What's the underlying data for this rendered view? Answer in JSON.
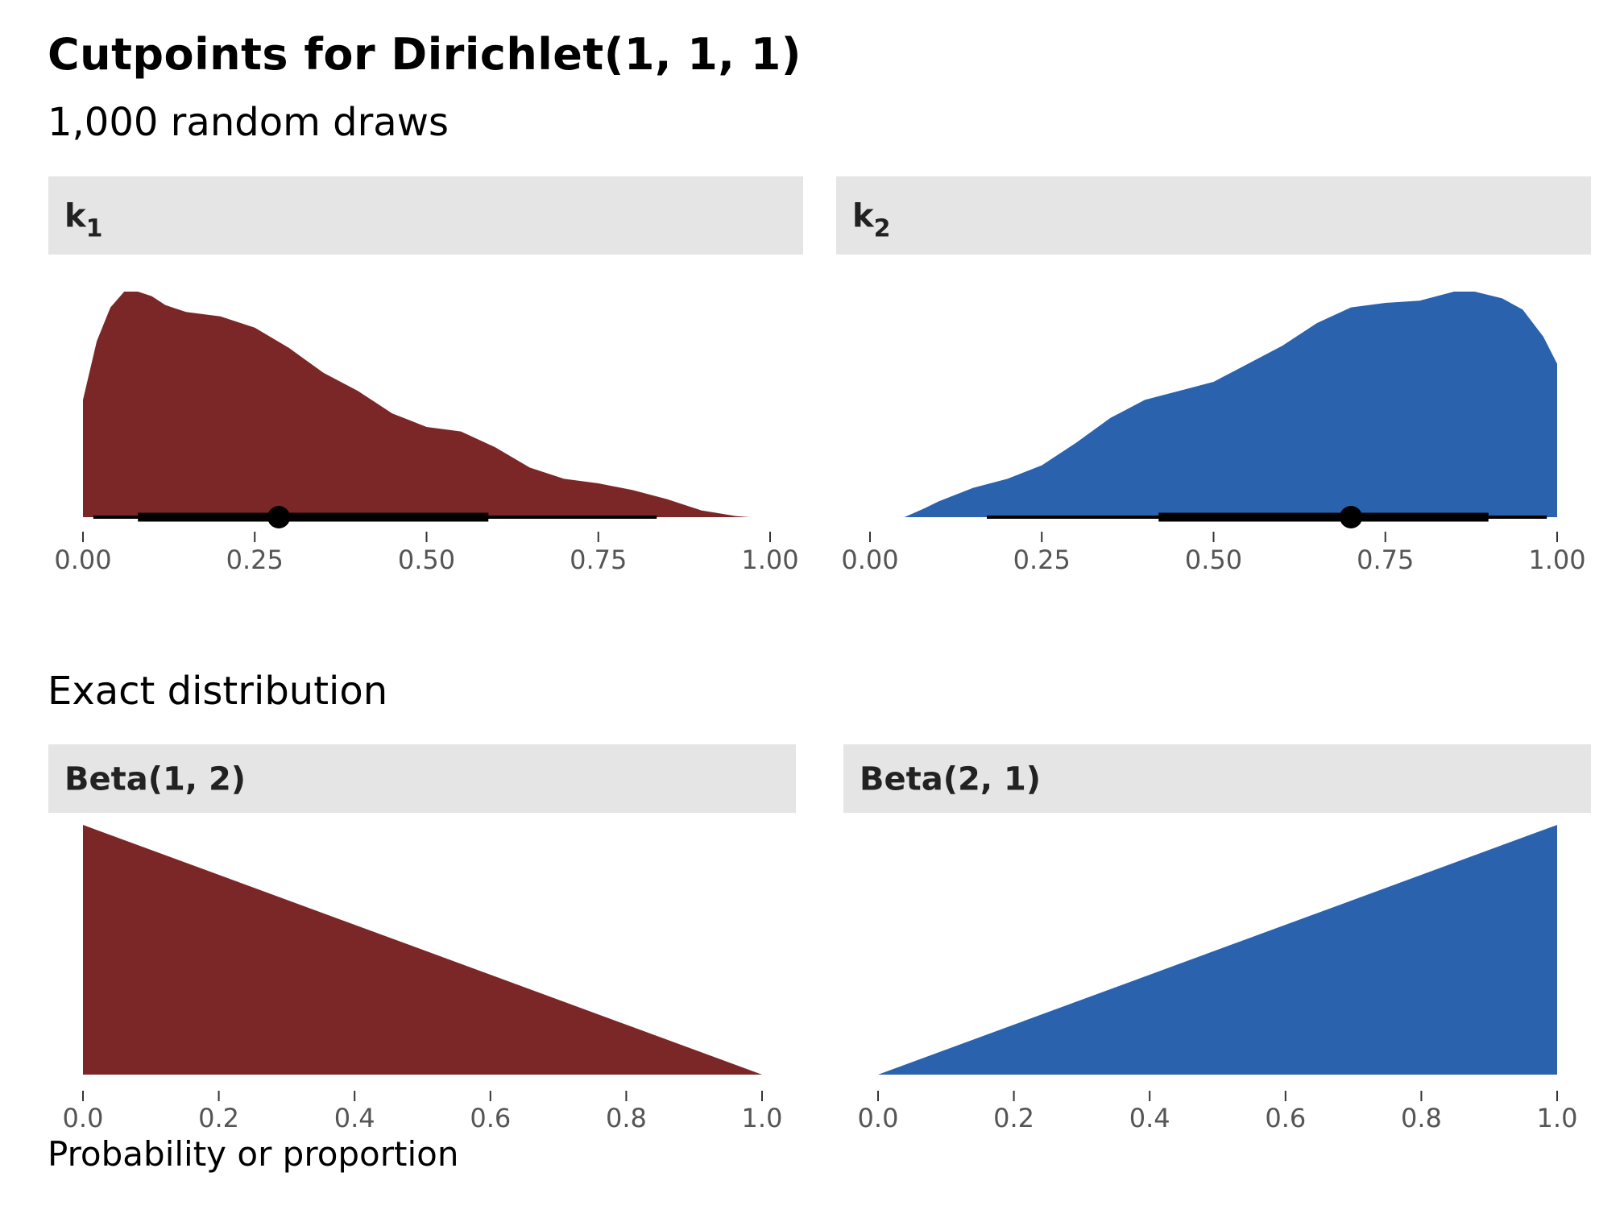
{
  "title": "Cutpoints for Dirichlet(1, 1, 1)",
  "subtitle": "1,000 random draws",
  "section_title": "Exact distribution",
  "x_axis_title": "Probability or proportion",
  "colors": {
    "k1": "#7b2727",
    "k2": "#2a62ad",
    "strip_bg": "#e5e5e5",
    "interval": "#000000"
  },
  "chart_data": [
    {
      "type": "area",
      "strip": {
        "base": "k",
        "sub": "1"
      },
      "xlim": [
        0,
        1
      ],
      "x_ticks": [
        "0.00",
        "0.25",
        "0.50",
        "0.75",
        "1.00"
      ],
      "x": [
        0.0,
        0.02,
        0.04,
        0.06,
        0.08,
        0.1,
        0.12,
        0.15,
        0.2,
        0.25,
        0.3,
        0.35,
        0.4,
        0.45,
        0.5,
        0.55,
        0.6,
        0.65,
        0.7,
        0.75,
        0.8,
        0.85,
        0.9,
        0.95,
        0.97
      ],
      "density": [
        0.52,
        0.78,
        0.93,
        1.0,
        1.0,
        0.98,
        0.94,
        0.91,
        0.89,
        0.84,
        0.75,
        0.64,
        0.56,
        0.46,
        0.4,
        0.38,
        0.31,
        0.22,
        0.17,
        0.15,
        0.12,
        0.08,
        0.03,
        0.005,
        0.0
      ],
      "point_interval": {
        "point": 0.285,
        "inner": [
          0.08,
          0.59
        ],
        "outer": [
          0.015,
          0.835
        ]
      }
    },
    {
      "type": "area",
      "strip": {
        "base": "k",
        "sub": "2"
      },
      "xlim": [
        0,
        1
      ],
      "x_ticks": [
        "0.00",
        "0.25",
        "0.50",
        "0.75",
        "1.00"
      ],
      "x": [
        0.05,
        0.08,
        0.1,
        0.15,
        0.2,
        0.25,
        0.3,
        0.35,
        0.4,
        0.45,
        0.5,
        0.55,
        0.6,
        0.65,
        0.7,
        0.75,
        0.8,
        0.85,
        0.88,
        0.92,
        0.95,
        0.98,
        1.0
      ],
      "density": [
        0.0,
        0.04,
        0.07,
        0.13,
        0.17,
        0.23,
        0.33,
        0.44,
        0.52,
        0.56,
        0.6,
        0.68,
        0.76,
        0.86,
        0.93,
        0.95,
        0.96,
        1.0,
        1.0,
        0.97,
        0.92,
        0.8,
        0.68
      ],
      "point_interval": {
        "point": 0.7,
        "inner": [
          0.42,
          0.9
        ],
        "outer": [
          0.17,
          0.985
        ]
      }
    },
    {
      "type": "area",
      "strip": {
        "base": "Beta(1, 2)",
        "sub": ""
      },
      "xlim": [
        0,
        1
      ],
      "x_ticks": [
        "0.0",
        "0.2",
        "0.4",
        "0.6",
        "0.8",
        "1.0"
      ],
      "x": [
        0.0,
        1.0
      ],
      "density": [
        2.0,
        0.0
      ]
    },
    {
      "type": "area",
      "strip": {
        "base": "Beta(2, 1)",
        "sub": ""
      },
      "xlim": [
        0,
        1
      ],
      "x_ticks": [
        "0.0",
        "0.2",
        "0.4",
        "0.6",
        "0.8",
        "1.0"
      ],
      "x": [
        0.0,
        1.0
      ],
      "density": [
        0.0,
        2.0
      ]
    }
  ]
}
